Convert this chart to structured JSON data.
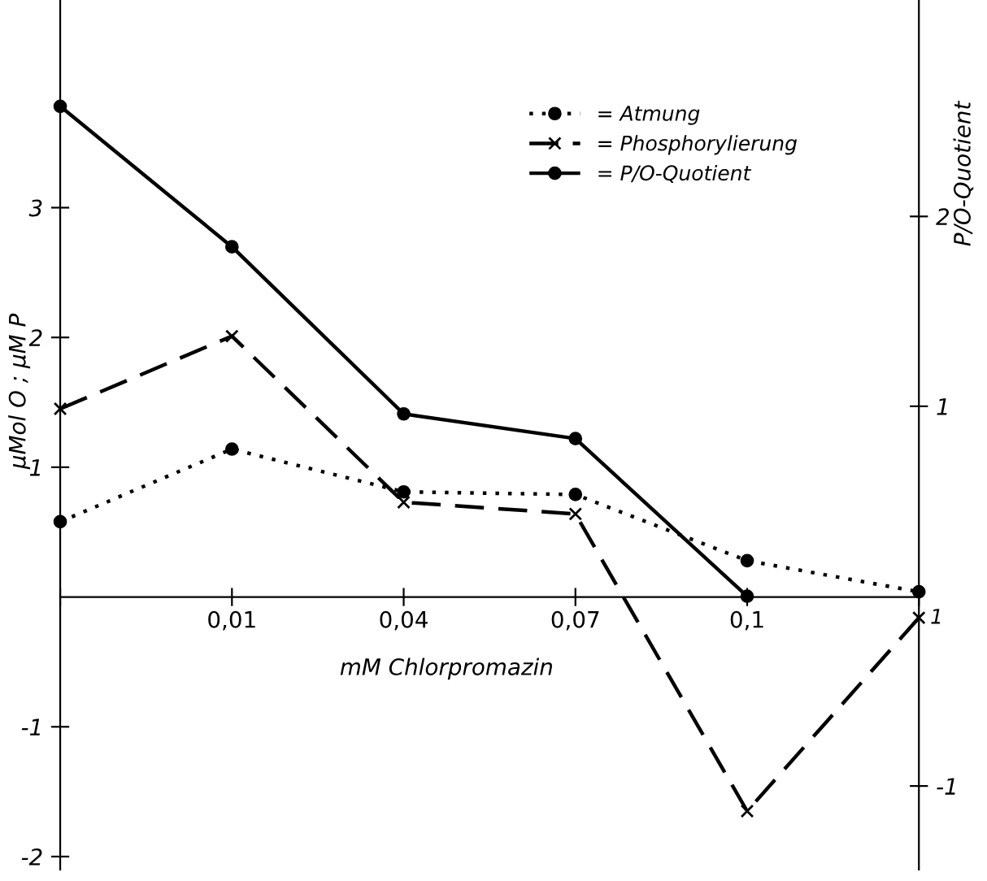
{
  "chart_data": {
    "type": "line",
    "xlabel": "mM Chlorpromazin",
    "ylabel": "µMol O ; µM P",
    "y2label": "P/O-Quotient",
    "categories": [
      null,
      "0,01",
      "0,04",
      "0,07",
      "0,1",
      "1"
    ],
    "series": [
      {
        "name": "= Atmung",
        "color": "#000000",
        "marker": "circle",
        "line_style": "dotted",
        "values": [
          0.58,
          1.14,
          0.81,
          0.79,
          0.28,
          0.04
        ]
      },
      {
        "name": "= Phosphorylierung",
        "color": "#000000",
        "marker": "cross",
        "line_style": "dashed",
        "values": [
          1.45,
          2.01,
          0.73,
          0.64,
          -1.65,
          -0.16
        ]
      },
      {
        "name": "= P/O-Quotient",
        "color": "#000000",
        "marker": "circle",
        "line_style": "solid",
        "axis": "y2",
        "values": [
          2.58,
          1.84,
          0.96,
          0.83,
          0.0,
          null
        ]
      }
    ],
    "ylim": [
      -2.1,
      4.6
    ],
    "yticks": [
      -2,
      -1,
      1,
      2,
      3
    ],
    "y2lim": [
      -1.44,
      3.14
    ],
    "y2ticks": [
      -1,
      1,
      2
    ],
    "legend": "top right",
    "grid": false
  }
}
